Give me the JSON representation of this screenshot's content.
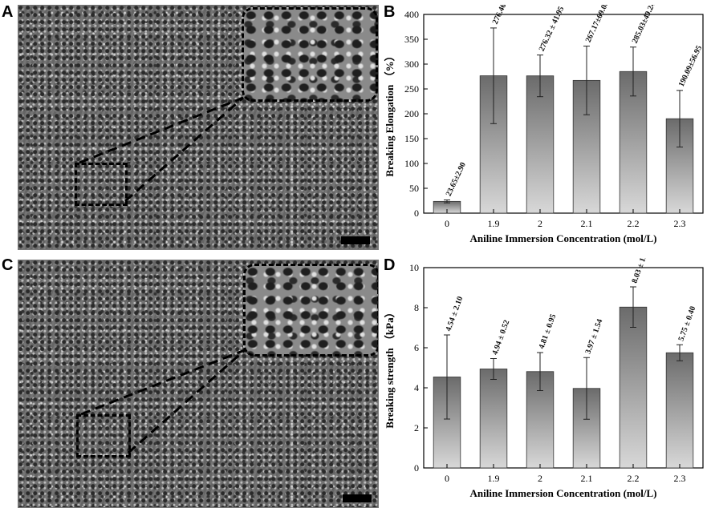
{
  "panels": {
    "a_letter": "A",
    "b_letter": "B",
    "c_letter": "C",
    "d_letter": "D"
  },
  "chart_data": [
    {
      "type": "bar",
      "panel": "B",
      "categories": [
        "0",
        "1.9",
        "2",
        "2.1",
        "2.2",
        "2.3"
      ],
      "values": [
        23.65,
        276.46,
        276.32,
        267.17,
        285.03,
        190.09
      ],
      "errors": [
        2.9,
        96.27,
        41.95,
        69.08,
        49.24,
        56.95
      ],
      "bar_labels": [
        "23.65±2.90",
        "276.46 ± 96.27",
        "276.32 ± 41.95",
        "267.17±69.08",
        "285.03±49.24",
        "190.09±56.95"
      ],
      "xlabel": "Aniline Immersion Concentration (mol/L)",
      "ylabel": "Breaking Elongation （%）",
      "ylim": [
        0,
        400
      ],
      "yticks": [
        0,
        50,
        100,
        150,
        200,
        250,
        300,
        350,
        400
      ],
      "grid": false
    },
    {
      "type": "bar",
      "panel": "D",
      "categories": [
        "0",
        "1.9",
        "2",
        "2.1",
        "2.2",
        "2.3"
      ],
      "values": [
        4.54,
        4.94,
        4.81,
        3.97,
        8.03,
        5.75
      ],
      "errors": [
        2.1,
        0.52,
        0.95,
        1.54,
        1.01,
        0.4
      ],
      "bar_labels": [
        "4.54 ± 2.10",
        "4.94 ± 0.52",
        "4.81 ± 0.95",
        "3.97 ± 1.54",
        "8.03 ± 1.01",
        "5.75 ± 0.40"
      ],
      "xlabel": "Aniline Immersion Concentration (mol/L)",
      "ylabel": "Breaking strength （kPa）",
      "ylim": [
        0,
        10
      ],
      "yticks": [
        0,
        2,
        4,
        6,
        8,
        10
      ],
      "grid": false
    }
  ]
}
